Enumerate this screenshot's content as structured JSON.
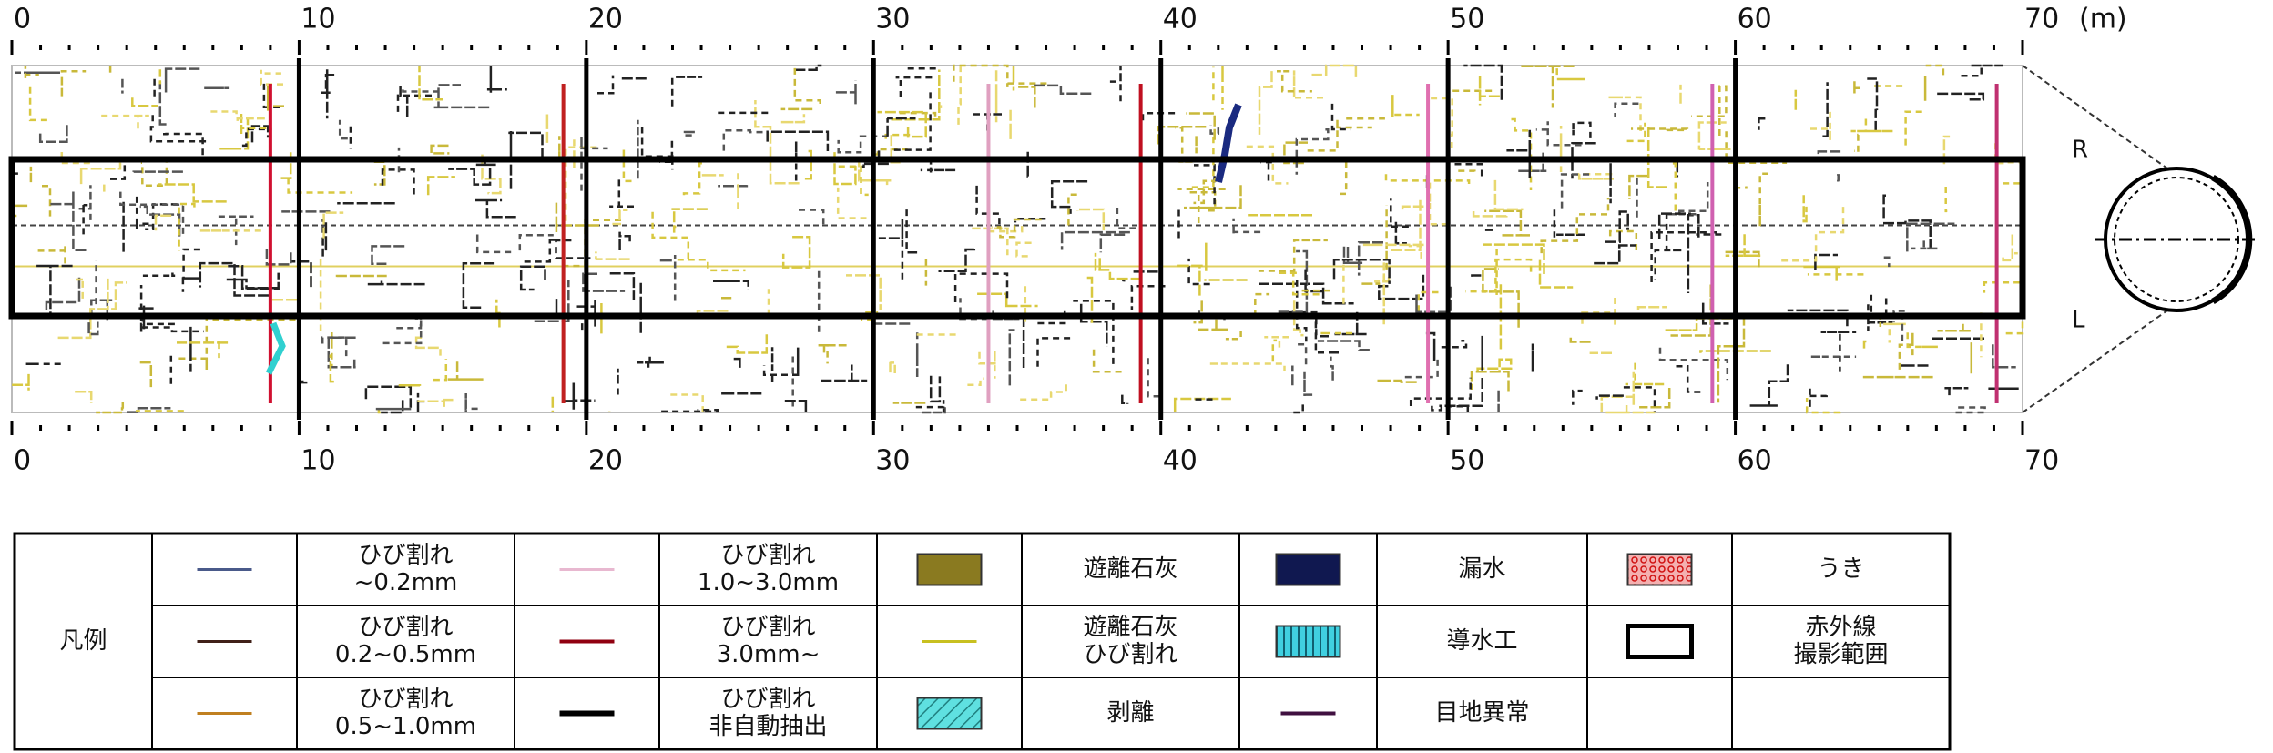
{
  "scale": {
    "unit": "(m)",
    "top_ticks": [
      0,
      10,
      20,
      30,
      40,
      50,
      60,
      70
    ],
    "bottom_ticks": [
      0,
      10,
      20,
      30,
      40,
      50,
      60,
      70
    ]
  },
  "side_labels": {
    "upper": "R",
    "lower": "L"
  },
  "legend": {
    "title": "凡例",
    "items": [
      {
        "lines": [
          "ひび割れ",
          "~0.2mm"
        ]
      },
      {
        "lines": [
          "ひび割れ",
          "0.2~0.5mm"
        ]
      },
      {
        "lines": [
          "ひび割れ",
          "0.5~1.0mm"
        ]
      },
      {
        "lines": [
          "ひび割れ",
          "1.0~3.0mm"
        ]
      },
      {
        "lines": [
          "ひび割れ",
          "3.0mm~"
        ]
      },
      {
        "lines": [
          "ひび割れ",
          "非自動抽出"
        ]
      },
      {
        "lines": [
          "遊離石灰"
        ]
      },
      {
        "lines": [
          "遊離石灰",
          "ひび割れ"
        ]
      },
      {
        "lines": [
          "剥離"
        ]
      },
      {
        "lines": [
          "漏水"
        ]
      },
      {
        "lines": [
          "導水工"
        ]
      },
      {
        "lines": [
          "目地異常"
        ]
      },
      {
        "lines": [
          "うき"
        ]
      },
      {
        "lines": [
          "赤外線",
          "撮影範囲"
        ]
      }
    ]
  }
}
